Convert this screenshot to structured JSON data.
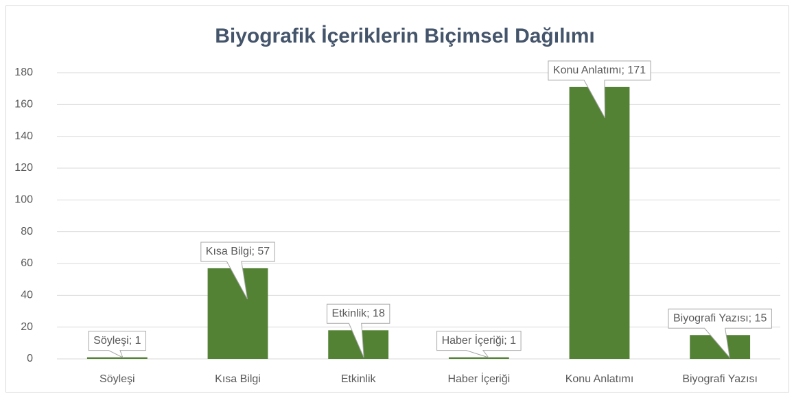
{
  "chart_data": {
    "type": "bar",
    "title": "Biyografik İçeriklerin Biçimsel Dağılımı",
    "categories": [
      "Söyleşi",
      "Kısa Bilgi",
      "Etkinlik",
      "Haber İçeriği",
      "Konu Anlatımı",
      "Biyografi Yazısı"
    ],
    "values": [
      1,
      57,
      18,
      1,
      171,
      15
    ],
    "value_labels": [
      "Söyleşi; 1",
      "Kısa Bilgi; 57",
      "Etkinlik; 18",
      "Haber İçeriği; 1",
      "Konu Anlatımı; 171",
      "Biyografi Yazısı; 15"
    ],
    "color": "#548235",
    "ylim": [
      0,
      180
    ],
    "yticks": [
      0,
      20,
      40,
      60,
      80,
      100,
      120,
      140,
      160,
      180
    ],
    "grid": true
  }
}
